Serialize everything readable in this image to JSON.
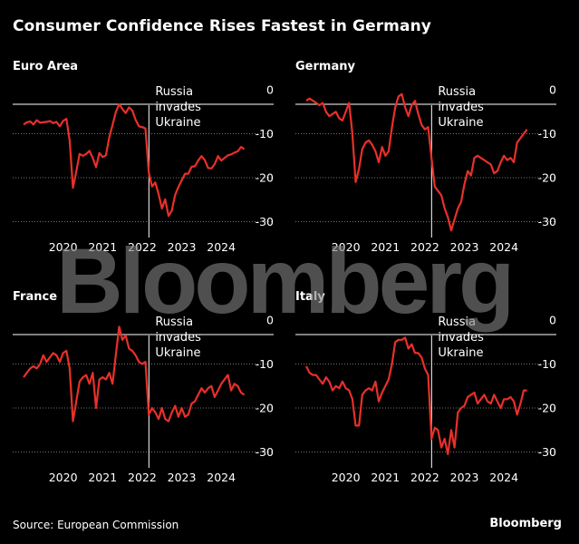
{
  "title": "Consumer Confidence Rises Fastest in Germany",
  "watermark": "Bloomberg",
  "source": "Source: European Commission",
  "brand": "Bloomberg",
  "colors": {
    "background": "#000000",
    "line": "#e8302a",
    "axis": "#ffffff",
    "grid": "#9a9a9a"
  },
  "chart_data": [
    {
      "type": "line",
      "title": "Euro Area",
      "annotation": [
        "Russia",
        "invades",
        "Ukraine"
      ],
      "annotation_x": 2022.17,
      "xticks": [
        2020,
        2021,
        2022,
        2023,
        2024
      ],
      "xlim": [
        2019.0,
        2025.0
      ],
      "yticks": [
        0,
        -10,
        -20,
        -30
      ],
      "ylim": [
        -33,
        0
      ],
      "x": [
        2019.0,
        2019.083,
        2019.167,
        2019.25,
        2019.333,
        2019.417,
        2019.5,
        2019.583,
        2019.667,
        2019.75,
        2019.833,
        2019.917,
        2020.0,
        2020.083,
        2020.167,
        2020.25,
        2020.333,
        2020.417,
        2020.5,
        2020.583,
        2020.667,
        2020.75,
        2020.833,
        2020.917,
        2021.0,
        2021.083,
        2021.167,
        2021.25,
        2021.333,
        2021.417,
        2021.5,
        2021.583,
        2021.667,
        2021.75,
        2021.833,
        2021.917,
        2022.0,
        2022.083,
        2022.167,
        2022.25,
        2022.333,
        2022.417,
        2022.5,
        2022.583,
        2022.667,
        2022.75,
        2022.833,
        2022.917,
        2023.0,
        2023.083,
        2023.167,
        2023.25,
        2023.333,
        2023.417,
        2023.5,
        2023.583,
        2023.667,
        2023.75,
        2023.833,
        2023.917,
        2024.0,
        2024.083,
        2024.167,
        2024.25,
        2024.333,
        2024.417,
        2024.5,
        2024.583
      ],
      "y": [
        -7.9,
        -7.4,
        -7.2,
        -7.9,
        -6.9,
        -7.5,
        -7.4,
        -7.3,
        -7.1,
        -7.6,
        -7.3,
        -8.3,
        -7.1,
        -6.6,
        -11.6,
        -22.3,
        -18.6,
        -14.6,
        -15.0,
        -14.6,
        -13.9,
        -15.5,
        -17.6,
        -14.4,
        -15.3,
        -14.9,
        -10.8,
        -8.0,
        -5.1,
        -3.3,
        -4.4,
        -5.3,
        -4.0,
        -4.7,
        -6.8,
        -8.3,
        -8.5,
        -8.8,
        -18.8,
        -22.0,
        -21.1,
        -23.8,
        -27.0,
        -24.9,
        -28.7,
        -27.5,
        -23.9,
        -22.1,
        -20.6,
        -19.1,
        -19.1,
        -17.5,
        -17.4,
        -16.1,
        -15.1,
        -16.0,
        -17.8,
        -17.9,
        -16.9,
        -15.1,
        -16.1,
        -15.5,
        -14.9,
        -14.7,
        -14.3,
        -14.0,
        -13.0,
        -13.5
      ]
    },
    {
      "type": "line",
      "title": "Germany",
      "annotation": [
        "Russia",
        "invades",
        "Ukraine"
      ],
      "annotation_x": 2022.17,
      "xticks": [
        2020,
        2021,
        2022,
        2023,
        2024
      ],
      "xlim": [
        2019.0,
        2025.0
      ],
      "yticks": [
        0,
        -10,
        -20,
        -30
      ],
      "ylim": [
        -33,
        0
      ],
      "x": [
        2019.0,
        2019.083,
        2019.167,
        2019.25,
        2019.333,
        2019.417,
        2019.5,
        2019.583,
        2019.667,
        2019.75,
        2019.833,
        2019.917,
        2020.0,
        2020.083,
        2020.167,
        2020.25,
        2020.333,
        2020.417,
        2020.5,
        2020.583,
        2020.667,
        2020.75,
        2020.833,
        2020.917,
        2021.0,
        2021.083,
        2021.167,
        2021.25,
        2021.333,
        2021.417,
        2021.5,
        2021.583,
        2021.667,
        2021.75,
        2021.833,
        2021.917,
        2022.0,
        2022.083,
        2022.167,
        2022.25,
        2022.333,
        2022.417,
        2022.5,
        2022.583,
        2022.667,
        2022.75,
        2022.833,
        2022.917,
        2023.0,
        2023.083,
        2023.167,
        2023.25,
        2023.333,
        2023.417,
        2023.5,
        2023.583,
        2023.667,
        2023.75,
        2023.833,
        2023.917,
        2024.0,
        2024.083,
        2024.167,
        2024.25,
        2024.333,
        2024.417,
        2024.5,
        2024.583
      ],
      "y": [
        -2.5,
        -2.0,
        -2.5,
        -3.0,
        -3.5,
        -3.0,
        -5.0,
        -6.0,
        -5.5,
        -5.0,
        -6.5,
        -7.0,
        -5.0,
        -3.0,
        -10.0,
        -21.0,
        -18.0,
        -13.5,
        -12.0,
        -11.5,
        -12.5,
        -14.0,
        -16.5,
        -13.0,
        -15.0,
        -14.0,
        -8.5,
        -4.0,
        -1.5,
        -1.0,
        -4.0,
        -6.0,
        -3.5,
        -2.5,
        -5.5,
        -8.0,
        -9.0,
        -8.5,
        -15.5,
        -22.0,
        -23.0,
        -24.0,
        -27.0,
        -29.0,
        -32.0,
        -29.5,
        -27.0,
        -25.5,
        -21.5,
        -18.5,
        -19.5,
        -15.5,
        -15.0,
        -15.5,
        -16.0,
        -16.5,
        -17.0,
        -19.0,
        -18.5,
        -16.5,
        -15.0,
        -16.0,
        -15.5,
        -16.5,
        -12.0,
        -11.0,
        -10.0,
        -9.0
      ]
    },
    {
      "type": "line",
      "title": "France",
      "annotation": [
        "Russia",
        "invades",
        "Ukraine"
      ],
      "annotation_x": 2022.17,
      "xticks": [
        2020,
        2021,
        2022,
        2023,
        2024
      ],
      "xlim": [
        2019.0,
        2025.0
      ],
      "yticks": [
        0,
        -10,
        -20,
        -30
      ],
      "ylim": [
        -33,
        0
      ],
      "x": [
        2019.0,
        2019.083,
        2019.167,
        2019.25,
        2019.333,
        2019.417,
        2019.5,
        2019.583,
        2019.667,
        2019.75,
        2019.833,
        2019.917,
        2020.0,
        2020.083,
        2020.167,
        2020.25,
        2020.333,
        2020.417,
        2020.5,
        2020.583,
        2020.667,
        2020.75,
        2020.833,
        2020.917,
        2021.0,
        2021.083,
        2021.167,
        2021.25,
        2021.333,
        2021.417,
        2021.5,
        2021.583,
        2021.667,
        2021.75,
        2021.833,
        2021.917,
        2022.0,
        2022.083,
        2022.167,
        2022.25,
        2022.333,
        2022.417,
        2022.5,
        2022.583,
        2022.667,
        2022.75,
        2022.833,
        2022.917,
        2023.0,
        2023.083,
        2023.167,
        2023.25,
        2023.333,
        2023.417,
        2023.5,
        2023.583,
        2023.667,
        2023.75,
        2023.833,
        2023.917,
        2024.0,
        2024.083,
        2024.167,
        2024.25,
        2024.333,
        2024.417,
        2024.5,
        2024.583
      ],
      "y": [
        -13.0,
        -12.0,
        -11.0,
        -10.5,
        -11.0,
        -10.0,
        -8.0,
        -9.5,
        -8.5,
        -7.5,
        -8.0,
        -9.5,
        -7.5,
        -7.0,
        -11.0,
        -23.0,
        -18.5,
        -14.0,
        -13.0,
        -12.5,
        -14.5,
        -12.0,
        -20.0,
        -13.5,
        -13.0,
        -13.5,
        -12.0,
        -14.5,
        -8.0,
        -1.5,
        -4.5,
        -3.5,
        -6.5,
        -7.0,
        -8.0,
        -9.5,
        -10.0,
        -9.5,
        -21.5,
        -20.0,
        -21.0,
        -22.5,
        -20.0,
        -22.5,
        -23.0,
        -21.0,
        -19.5,
        -22.0,
        -20.0,
        -22.0,
        -21.5,
        -19.0,
        -18.5,
        -17.0,
        -15.5,
        -16.5,
        -15.5,
        -15.0,
        -17.5,
        -16.0,
        -14.5,
        -13.5,
        -12.5,
        -16.0,
        -14.5,
        -15.0,
        -16.5,
        -17.0
      ]
    },
    {
      "type": "line",
      "title": "Italy",
      "annotation": [
        "Russia",
        "invades",
        "Ukraine"
      ],
      "annotation_x": 2022.17,
      "xticks": [
        2020,
        2021,
        2022,
        2023,
        2024
      ],
      "xlim": [
        2019.0,
        2025.0
      ],
      "yticks": [
        0,
        -10,
        -20,
        -30
      ],
      "ylim": [
        -33,
        0
      ],
      "x": [
        2019.0,
        2019.083,
        2019.167,
        2019.25,
        2019.333,
        2019.417,
        2019.5,
        2019.583,
        2019.667,
        2019.75,
        2019.833,
        2019.917,
        2020.0,
        2020.083,
        2020.167,
        2020.25,
        2020.333,
        2020.417,
        2020.5,
        2020.583,
        2020.667,
        2020.75,
        2020.833,
        2020.917,
        2021.0,
        2021.083,
        2021.167,
        2021.25,
        2021.333,
        2021.417,
        2021.5,
        2021.583,
        2021.667,
        2021.75,
        2021.833,
        2021.917,
        2022.0,
        2022.083,
        2022.167,
        2022.25,
        2022.333,
        2022.417,
        2022.5,
        2022.583,
        2022.667,
        2022.75,
        2022.833,
        2022.917,
        2023.0,
        2023.083,
        2023.167,
        2023.25,
        2023.333,
        2023.417,
        2023.5,
        2023.583,
        2023.667,
        2023.75,
        2023.833,
        2023.917,
        2024.0,
        2024.083,
        2024.167,
        2024.25,
        2024.333,
        2024.417,
        2024.5,
        2024.583
      ],
      "y": [
        -10.5,
        -12.0,
        -12.5,
        -12.5,
        -13.5,
        -14.5,
        -13.0,
        -14.0,
        -16.0,
        -15.0,
        -15.5,
        -14.0,
        -15.5,
        -16.0,
        -18.0,
        -24.0,
        -24.0,
        -17.0,
        -16.0,
        -15.5,
        -16.0,
        -14.0,
        -18.5,
        -16.5,
        -15.0,
        -13.5,
        -10.0,
        -5.0,
        -4.5,
        -4.5,
        -4.0,
        -6.5,
        -5.5,
        -7.5,
        -7.5,
        -8.5,
        -11.0,
        -12.5,
        -27.0,
        -24.5,
        -25.0,
        -29.0,
        -27.0,
        -30.5,
        -25.0,
        -29.0,
        -21.0,
        -20.0,
        -19.5,
        -17.5,
        -17.0,
        -16.5,
        -19.0,
        -18.0,
        -17.0,
        -18.5,
        -19.0,
        -17.0,
        -18.5,
        -20.0,
        -18.0,
        -18.0,
        -17.5,
        -18.5,
        -21.5,
        -19.0,
        -16.0,
        -16.0
      ]
    }
  ]
}
